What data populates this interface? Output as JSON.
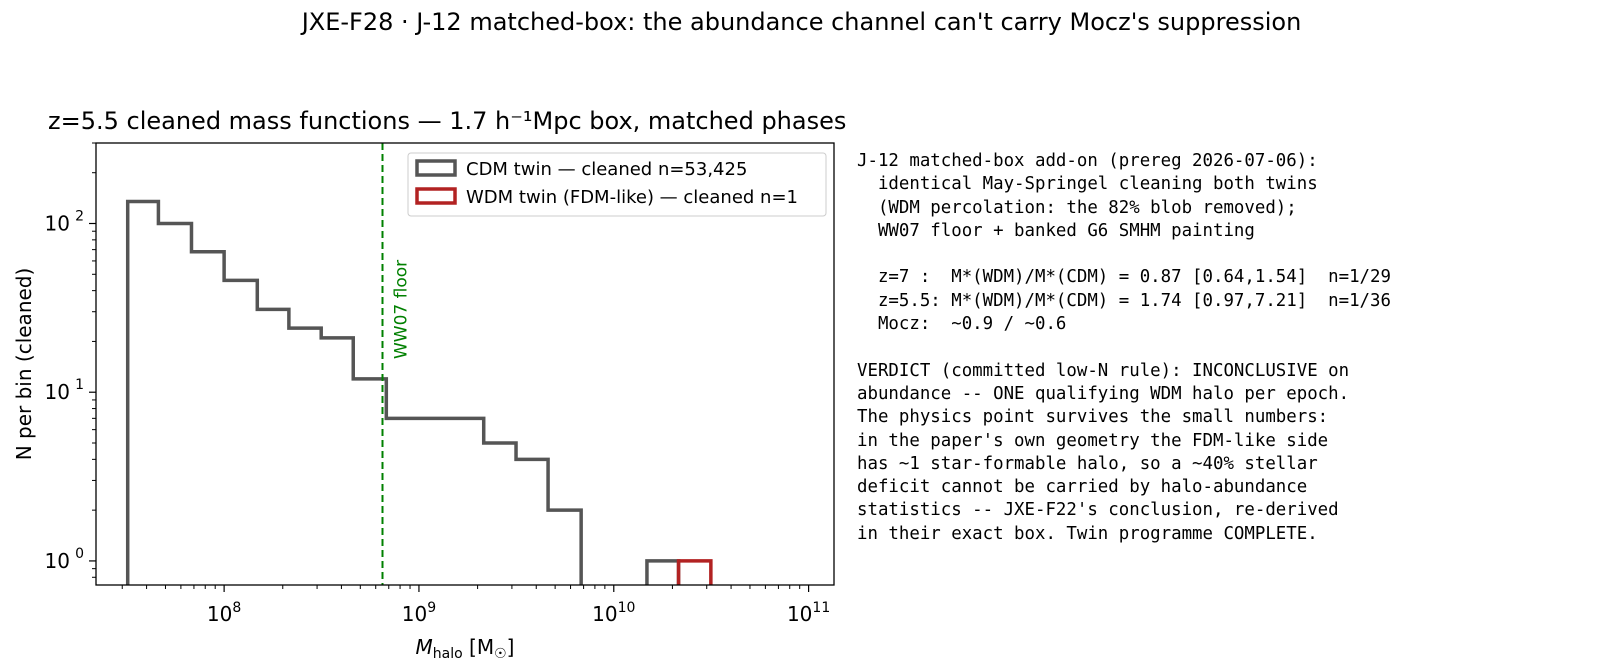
{
  "suptitle": "JXE-F28 · J-12 matched-box: the abundance channel can't carry Mocz's suppression",
  "chart_data": {
    "type": "histogram",
    "title": "z=5.5 cleaned mass functions — 1.7 h⁻¹Mpc box, matched phases",
    "xlabel": "M_halo [M☉]",
    "xlabel_main": "M",
    "xlabel_sub": "halo",
    "xlabel_unit": " [M",
    "xlabel_unit_sub": "☉",
    "xlabel_unit_close": "]",
    "ylabel": "N per bin (cleaned)",
    "xscale": "log",
    "yscale": "log",
    "xlim": [
      22000000.0,
      135000000000.0
    ],
    "ylim": [
      0.72,
      300
    ],
    "grid": false,
    "legend_position": "top-right",
    "x_ticks": [
      {
        "value": 100000000.0,
        "base": "10",
        "exp": "8"
      },
      {
        "value": 1000000000.0,
        "base": "10",
        "exp": "9"
      },
      {
        "value": 10000000000.0,
        "base": "10",
        "exp": "10"
      },
      {
        "value": 100000000000.0,
        "base": "10",
        "exp": "11"
      }
    ],
    "y_ticks": [
      {
        "value": 1,
        "base": "10",
        "exp": "0"
      },
      {
        "value": 10,
        "base": "10",
        "exp": "1"
      },
      {
        "value": 100,
        "base": "10",
        "exp": "2"
      }
    ],
    "series": [
      {
        "name": "CDM twin — cleaned n=53,425",
        "color": "#555555",
        "bin_edges": [
          32000000.0,
          46000000.0,
          68000000.0,
          100000000.0,
          148000000.0,
          215000000.0,
          315000000.0,
          460000000.0,
          680000000.0,
          1000000000.0,
          1480000000.0,
          2150000000.0,
          3150000000.0,
          4600000000.0,
          6800000000.0,
          10000000000.0,
          14800000000.0,
          21500000000.0
        ],
        "counts": [
          135,
          100,
          68,
          46,
          31,
          24,
          21,
          12,
          7,
          7,
          7,
          5,
          4,
          2,
          0,
          0,
          1
        ]
      },
      {
        "name": "WDM twin (FDM-like) — cleaned n=1",
        "color": "#b22222",
        "bin_edges": [
          21500000000.0,
          31500000000.0
        ],
        "counts": [
          1
        ]
      }
    ],
    "vline": {
      "x": 650000000.0,
      "label": "WW07 floor",
      "color": "#008000",
      "style": "dashed"
    }
  },
  "notes": {
    "lines": [
      "J-12 matched-box add-on (prereg 2026-07-06):",
      "  identical May-Springel cleaning both twins",
      "  (WDM percolation: the 82% blob removed);",
      "  WW07 floor + banked G6 SMHM painting",
      "",
      "  z=7 :  M*(WDM)/M*(CDM) = 0.87 [0.64,1.54]  n=1/29",
      "  z=5.5: M*(WDM)/M*(CDM) = 1.74 [0.97,7.21]  n=1/36",
      "  Mocz:  ~0.9 / ~0.6",
      "",
      "VERDICT (committed low-N rule): INCONCLUSIVE on",
      "abundance -- ONE qualifying WDM halo per epoch.",
      "The physics point survives the small numbers:",
      "in the paper's own geometry the FDM-like side",
      "has ~1 star-formable halo, so a ~40% stellar",
      "deficit cannot be carried by halo-abundance",
      "statistics -- JXE-F22's conclusion, re-derived",
      "in their exact box. Twin programme COMPLETE."
    ]
  }
}
